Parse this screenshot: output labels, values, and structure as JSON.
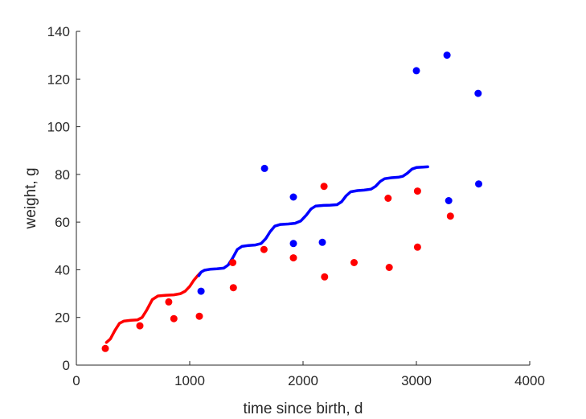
{
  "chart_data": {
    "type": "scatter",
    "title": "",
    "xlabel": "time since birth, d",
    "ylabel": "weight, g",
    "xlim": [
      0,
      4000
    ],
    "ylim": [
      0,
      140
    ],
    "xticks": [
      0,
      1000,
      2000,
      3000,
      4000
    ],
    "yticks": [
      0,
      20,
      40,
      60,
      80,
      100,
      120,
      140
    ],
    "grid": false,
    "legend": "none",
    "series": [
      {
        "kind": "scatter",
        "color": "#ff0000",
        "points": [
          [
            255,
            7
          ],
          [
            560,
            16.5
          ],
          [
            815,
            26.5
          ],
          [
            860,
            19.5
          ],
          [
            1085,
            20.5
          ],
          [
            1380,
            43
          ],
          [
            1385,
            32.5
          ],
          [
            1655,
            48.5
          ],
          [
            1915,
            45
          ],
          [
            2185,
            75
          ],
          [
            2190,
            37
          ],
          [
            2450,
            43
          ],
          [
            2750,
            70
          ],
          [
            2760,
            41
          ],
          [
            3010,
            73
          ],
          [
            3010,
            49.5
          ],
          [
            3300,
            62.5
          ]
        ]
      },
      {
        "kind": "scatter",
        "color": "#0000ff",
        "points": [
          [
            1100,
            31
          ],
          [
            1660,
            82.5
          ],
          [
            1915,
            70.5
          ],
          [
            1915,
            51
          ],
          [
            2170,
            51.5
          ],
          [
            3000,
            123.5
          ],
          [
            3270,
            130
          ],
          [
            3285,
            69
          ],
          [
            3545,
            114
          ],
          [
            3550,
            76
          ]
        ]
      },
      {
        "kind": "line",
        "color": "#ff0000",
        "points": [
          [
            265,
            9.5
          ],
          [
            300,
            11
          ],
          [
            340,
            14.5
          ],
          [
            380,
            17.5
          ],
          [
            420,
            18.5
          ],
          [
            480,
            18.8
          ],
          [
            540,
            19
          ],
          [
            580,
            20
          ],
          [
            620,
            23
          ],
          [
            670,
            27.5
          ],
          [
            720,
            29
          ],
          [
            790,
            29.3
          ],
          [
            860,
            29.5
          ],
          [
            920,
            30
          ],
          [
            960,
            31
          ],
          [
            1000,
            33
          ],
          [
            1035,
            35.5
          ],
          [
            1070,
            37.5
          ],
          [
            1090,
            38.5
          ]
        ]
      },
      {
        "kind": "line",
        "color": "#0000ff",
        "points": [
          [
            1080,
            37.5
          ],
          [
            1100,
            39
          ],
          [
            1130,
            39.8
          ],
          [
            1180,
            40.2
          ],
          [
            1240,
            40.4
          ],
          [
            1300,
            40.7
          ],
          [
            1340,
            42
          ],
          [
            1380,
            45
          ],
          [
            1420,
            48.5
          ],
          [
            1460,
            49.8
          ],
          [
            1520,
            50.2
          ],
          [
            1580,
            50.4
          ],
          [
            1630,
            51
          ],
          [
            1670,
            53
          ],
          [
            1710,
            56
          ],
          [
            1750,
            58.3
          ],
          [
            1800,
            59
          ],
          [
            1870,
            59.2
          ],
          [
            1930,
            59.5
          ],
          [
            1980,
            60.5
          ],
          [
            2030,
            63
          ],
          [
            2070,
            65.5
          ],
          [
            2110,
            66.7
          ],
          [
            2180,
            67
          ],
          [
            2240,
            67.1
          ],
          [
            2300,
            67.3
          ],
          [
            2340,
            68.5
          ],
          [
            2380,
            71
          ],
          [
            2420,
            72.7
          ],
          [
            2480,
            73.2
          ],
          [
            2540,
            73.4
          ],
          [
            2600,
            73.8
          ],
          [
            2640,
            75
          ],
          [
            2680,
            77
          ],
          [
            2720,
            78.2
          ],
          [
            2780,
            78.6
          ],
          [
            2840,
            78.8
          ],
          [
            2880,
            79.2
          ],
          [
            2920,
            80.5
          ],
          [
            2960,
            82.2
          ],
          [
            3000,
            82.9
          ],
          [
            3060,
            83.1
          ],
          [
            3100,
            83.2
          ]
        ]
      }
    ]
  }
}
